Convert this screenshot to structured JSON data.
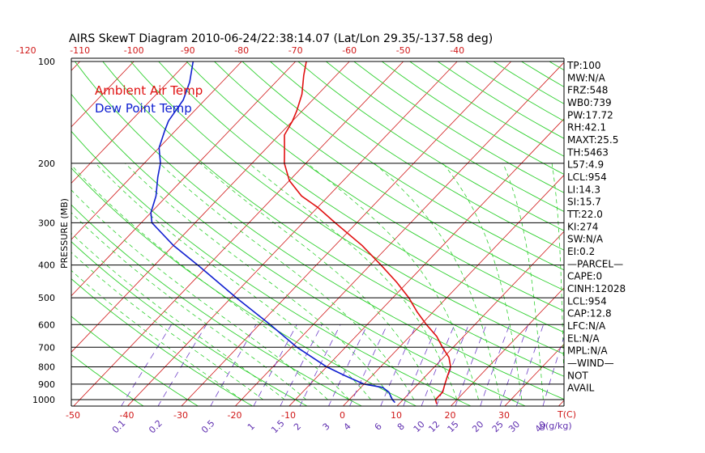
{
  "chart_data": {
    "type": "line",
    "title": "AIRS SkewT Diagram 2010-06-24/22:38:14.07 (Lat/Lon 29.35/-137.58 deg)",
    "ylabel": "PRESSURE (MB)",
    "xlabel": "T(C)",
    "mixing_ratio_unit_label": "g(g/kg)",
    "y_scale": "log",
    "ylim": [
      1050,
      100
    ],
    "xlim_bottom": [
      -52,
      62
    ],
    "pressure_ticks": [
      "100",
      "200",
      "300",
      "400",
      "500",
      "600",
      "700",
      "800",
      "900",
      "1000"
    ],
    "bottom_temp_ticks": [
      "-50",
      "-40",
      "-30",
      "-20",
      "-10",
      "0",
      "10",
      "20",
      "30"
    ],
    "top_temp_ticks": [
      "-120",
      "-110",
      "-100",
      "-90",
      "-80",
      "-70",
      "-60",
      "-50",
      "-40"
    ],
    "mixing_ratio_labels": [
      "0.1",
      "0.2",
      "0.5",
      "1",
      "1.5",
      "2",
      "3",
      "4",
      "6",
      "8",
      "10",
      "12",
      "15",
      "20",
      "25",
      "30",
      "40"
    ],
    "legend": {
      "position": "top-left",
      "entries": [
        {
          "name": "Ambient Air Temp",
          "color": "#e01010"
        },
        {
          "name": "Dew Point Temp",
          "color": "#1020d0"
        }
      ]
    },
    "colors": {
      "isotherm": "#d01818",
      "dry_adiabat": "#30d030",
      "moist_adiabat": "#30d030",
      "mixing_ratio": "#7040c8",
      "pressure_line": "#000000",
      "top_temp_label": "#d01818",
      "bottom_temp_label": "#d01818",
      "mixing_ratio_label": "#6030b0"
    },
    "series": [
      {
        "name": "Ambient Air Temp",
        "points": [
          {
            "p": 1030,
            "t": 17
          },
          {
            "p": 1000,
            "t": 16
          },
          {
            "p": 950,
            "t": 16
          },
          {
            "p": 900,
            "t": 15
          },
          {
            "p": 850,
            "t": 14
          },
          {
            "p": 800,
            "t": 13
          },
          {
            "p": 750,
            "t": 11
          },
          {
            "p": 700,
            "t": 8
          },
          {
            "p": 650,
            "t": 5
          },
          {
            "p": 600,
            "t": 1
          },
          {
            "p": 550,
            "t": -3
          },
          {
            "p": 500,
            "t": -7
          },
          {
            "p": 450,
            "t": -12
          },
          {
            "p": 400,
            "t": -18
          },
          {
            "p": 350,
            "t": -25
          },
          {
            "p": 300,
            "t": -34
          },
          {
            "p": 270,
            "t": -40
          },
          {
            "p": 250,
            "t": -45
          },
          {
            "p": 225,
            "t": -50
          },
          {
            "p": 200,
            "t": -54
          },
          {
            "p": 185,
            "t": -56
          },
          {
            "p": 165,
            "t": -59
          },
          {
            "p": 150,
            "t": -60
          },
          {
            "p": 140,
            "t": -61
          },
          {
            "p": 125,
            "t": -63
          },
          {
            "p": 110,
            "t": -66
          },
          {
            "p": 100,
            "t": -68
          }
        ]
      },
      {
        "name": "Dew Point Temp",
        "points": [
          {
            "p": 1020,
            "t": 9
          },
          {
            "p": 1000,
            "t": 8
          },
          {
            "p": 950,
            "t": 6
          },
          {
            "p": 920,
            "t": 4
          },
          {
            "p": 900,
            "t": 0
          },
          {
            "p": 850,
            "t": -5
          },
          {
            "p": 800,
            "t": -10
          },
          {
            "p": 700,
            "t": -19
          },
          {
            "p": 600,
            "t": -28
          },
          {
            "p": 500,
            "t": -39
          },
          {
            "p": 400,
            "t": -52
          },
          {
            "p": 350,
            "t": -60
          },
          {
            "p": 300,
            "t": -68
          },
          {
            "p": 280,
            "t": -70
          },
          {
            "p": 250,
            "t": -72
          },
          {
            "p": 220,
            "t": -75
          },
          {
            "p": 200,
            "t": -77
          },
          {
            "p": 180,
            "t": -80
          },
          {
            "p": 160,
            "t": -82
          },
          {
            "p": 150,
            "t": -83
          },
          {
            "p": 130,
            "t": -84
          },
          {
            "p": 115,
            "t": -86
          },
          {
            "p": 100,
            "t": -89
          }
        ]
      }
    ]
  },
  "indices": [
    "TP:100",
    "MW:N/A",
    "FRZ:548",
    "WB0:739",
    "PW:17.72",
    "RH:42.1",
    "MAXT:25.5",
    "TH:5463",
    "L57:4.9",
    "LCL:954",
    "LI:14.3",
    "SI:15.7",
    "TT:22.0",
    "KI:274",
    "SW:N/A",
    "EI:0.2",
    "—PARCEL—",
    "CAPE:0",
    "CINH:12028",
    "LCL:954",
    "CAP:12.8",
    "LFC:N/A",
    "EL:N/A",
    "MPL:N/A",
    "—WIND—",
    "NOT",
    "AVAIL"
  ]
}
